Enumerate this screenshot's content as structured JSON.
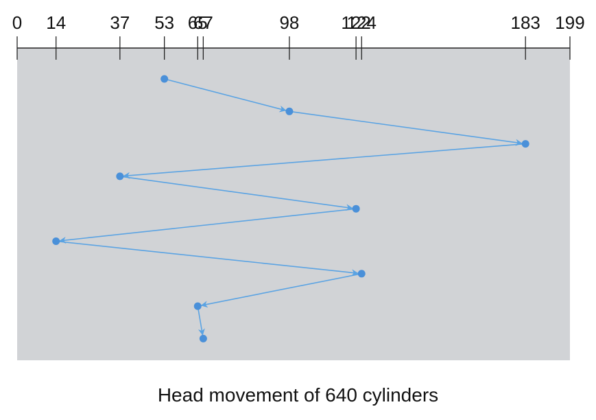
{
  "chart_data": {
    "type": "line",
    "axis": {
      "min": 0,
      "max": 199,
      "ticks": [
        0,
        14,
        37,
        53,
        65,
        67,
        98,
        122,
        124,
        183,
        199
      ],
      "tick_labels": [
        "0",
        "14",
        "37",
        "53",
        "65",
        "67",
        "98",
        "122",
        "124",
        "183",
        "199"
      ]
    },
    "sequence": [
      53,
      98,
      183,
      37,
      122,
      14,
      124,
      65,
      67
    ],
    "caption": "Head movement of 640 cylinders",
    "colors": {
      "panel": "#d1d3d6",
      "path": "#5aa3e3",
      "point": "#4a90d9",
      "axis": "#222222"
    }
  }
}
